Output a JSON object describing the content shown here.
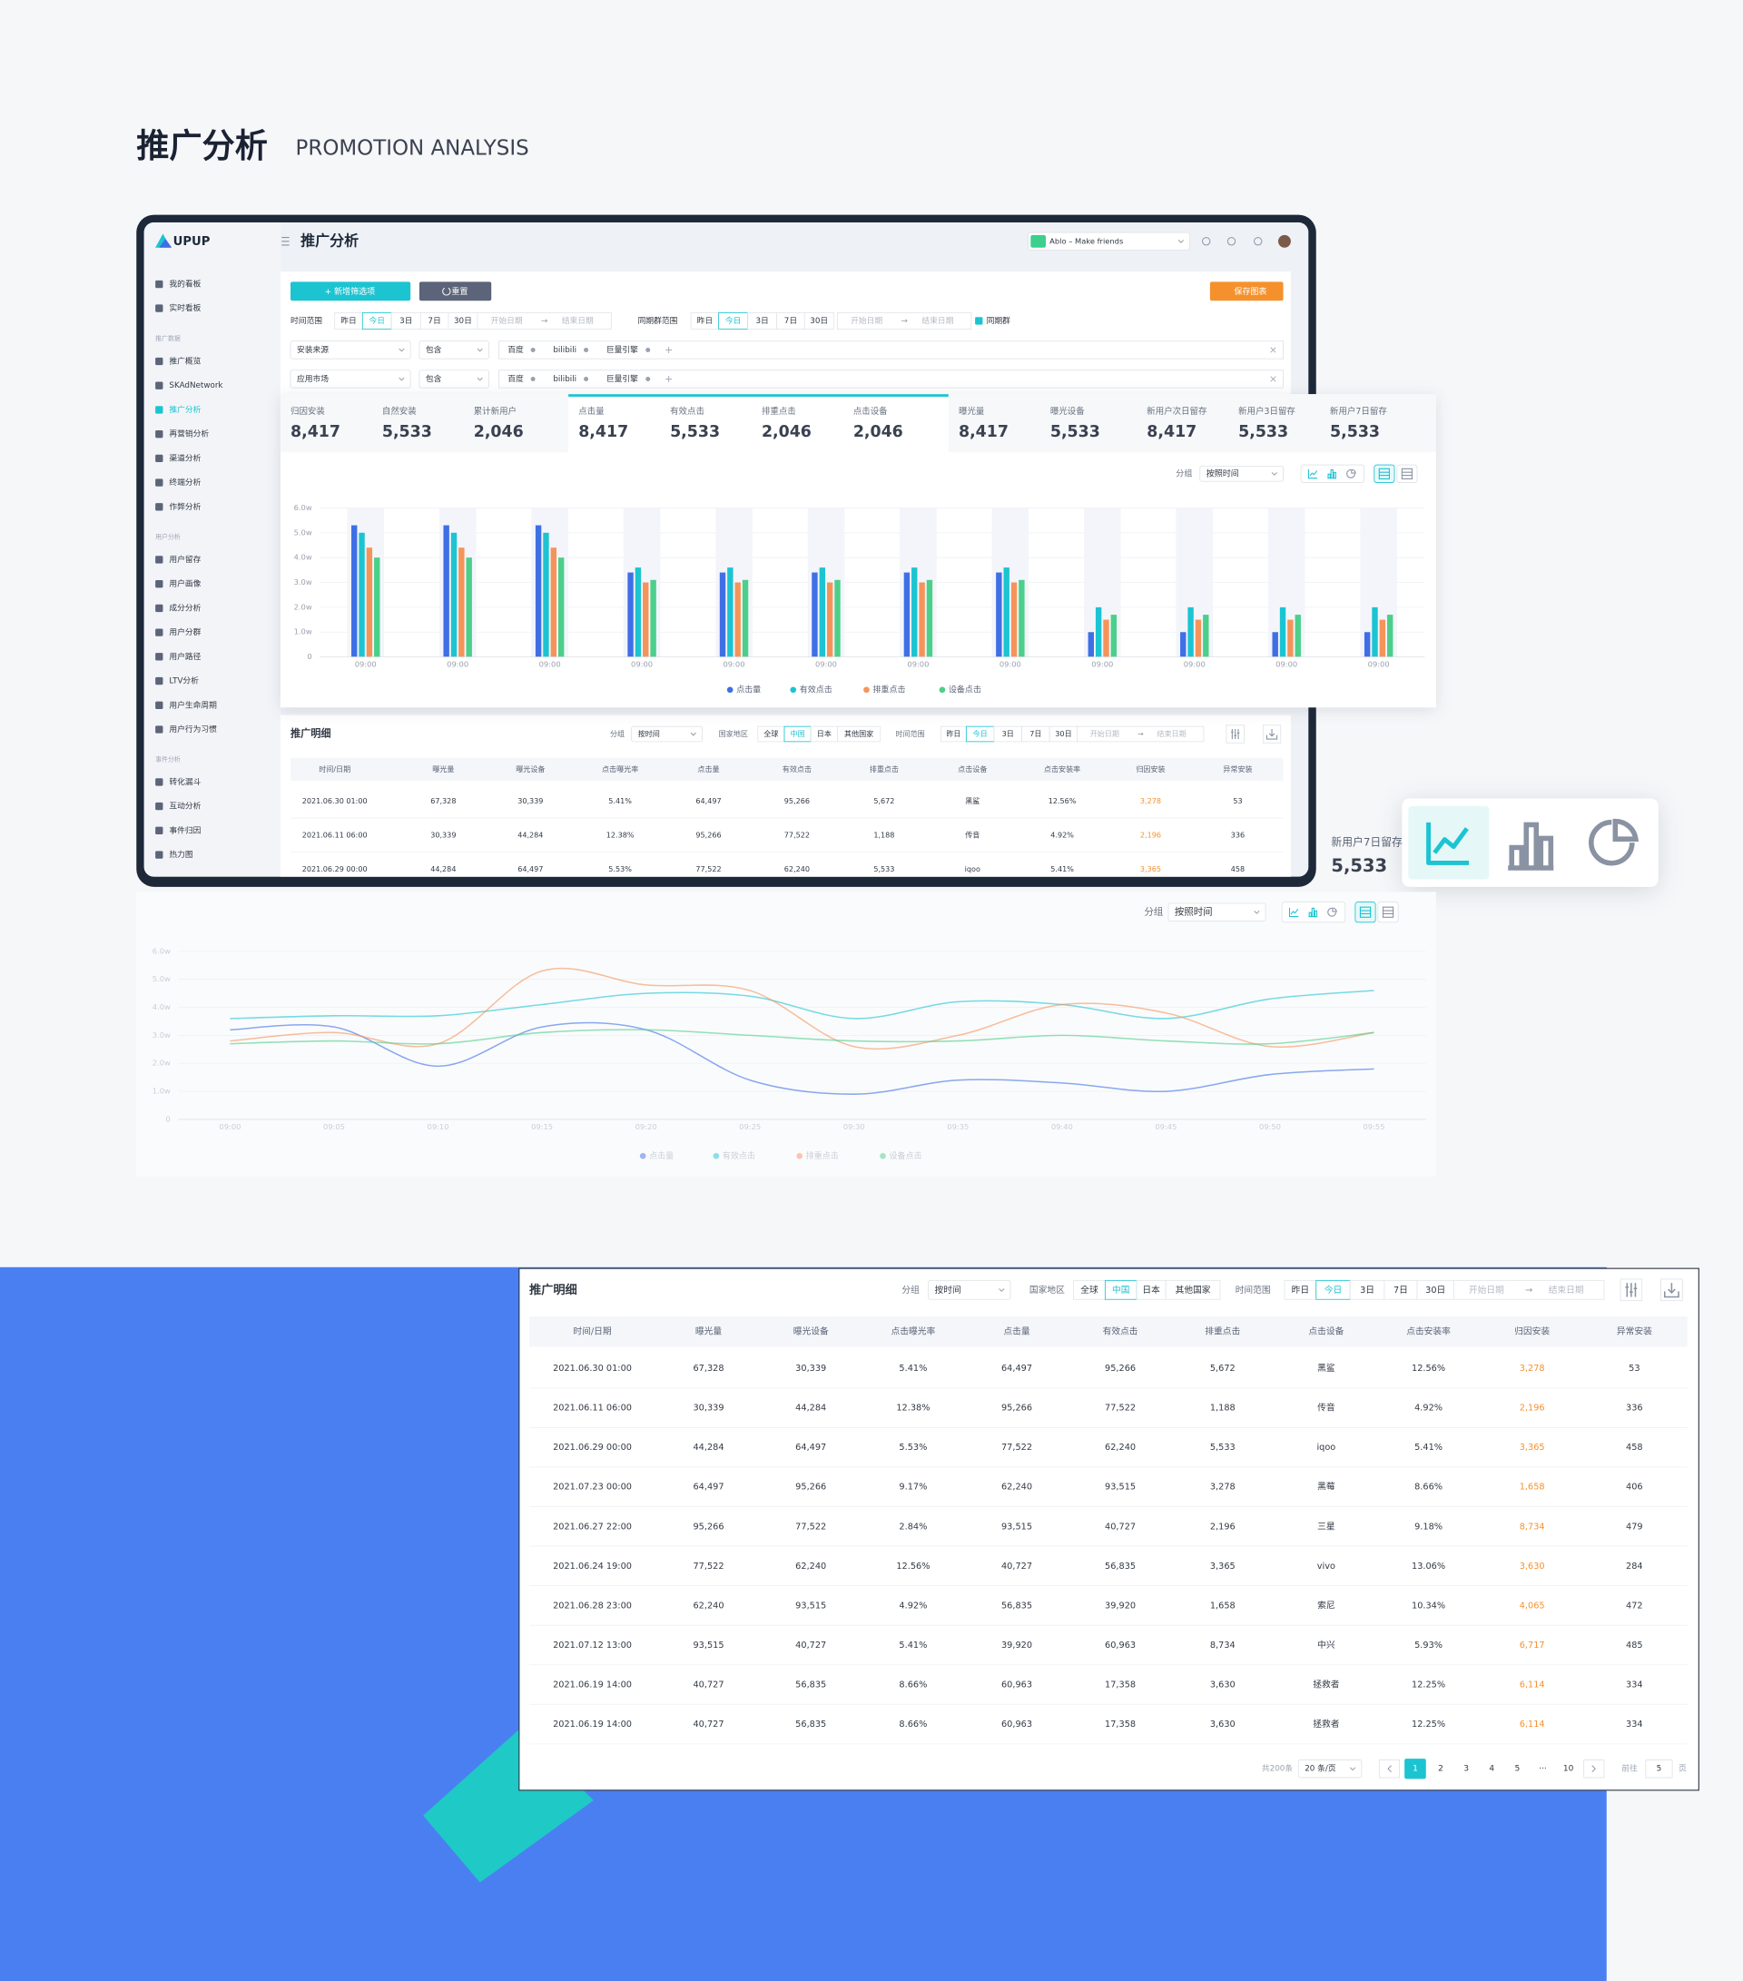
{
  "header": {
    "title": "推广分析",
    "subtitle": "PROMOTION ANALYSIS"
  },
  "app": {
    "logo": "UPUP",
    "page_title": "推广分析",
    "app_name": "Ablo – Make friends"
  },
  "sidebar": {
    "top": [
      "我的看板",
      "实时看板"
    ],
    "groups": [
      {
        "title": "推广数据",
        "items": [
          "推广概览",
          "SKAdNetwork",
          "推广分析",
          "再营销分析",
          "渠道分析",
          "终端分析",
          "作弊分析"
        ]
      },
      {
        "title": "用户分析",
        "items": [
          "用户留存",
          "用户画像",
          "成分分析",
          "用户分群",
          "用户路径",
          "LTV分析",
          "用户生命周期",
          "用户行为习惯"
        ]
      },
      {
        "title": "事件分析",
        "items": [
          "转化漏斗",
          "互动分析",
          "事件归因",
          "热力图"
        ]
      }
    ],
    "active_group": 0,
    "active_item": 2
  },
  "filters": {
    "add_button": "+ 新增筛选项",
    "reset_button": "重置",
    "save_button": "保存图表",
    "time_label": "时间范围",
    "time_options": [
      "昨日",
      "今日",
      "3日",
      "7日",
      "30日"
    ],
    "selected_option": 1,
    "start_date": "开始日期",
    "arrow": "→",
    "end_date": "结束日期",
    "cohort_label": "同期群范围",
    "cohort_checkbox": "同期群",
    "rows": [
      {
        "field": "安装来源",
        "operator": "包含",
        "tags": [
          "百度",
          "bilibili",
          "巨量引擎"
        ]
      },
      {
        "field": "应用市场",
        "operator": "包含",
        "tags": [
          "百度",
          "bilibili",
          "巨量引擎"
        ]
      }
    ]
  },
  "kpis": {
    "active_group": 1,
    "groups": [
      [
        {
          "label": "归因安装",
          "value": "8,417"
        },
        {
          "label": "自然安装",
          "value": "5,533"
        },
        {
          "label": "累计新用户",
          "value": "2,046"
        }
      ],
      [
        {
          "label": "点击量",
          "value": "8,417"
        },
        {
          "label": "有效点击",
          "value": "5,533"
        },
        {
          "label": "排重点击",
          "value": "2,046"
        },
        {
          "label": "点击设备",
          "value": "2,046"
        }
      ],
      [
        {
          "label": "曝光量",
          "value": "8,417"
        },
        {
          "label": "曝光设备",
          "value": "5,533"
        }
      ],
      [
        {
          "label": "新用户次日留存",
          "value": "8,417"
        },
        {
          "label": "新用户3日留存",
          "value": "5,533"
        },
        {
          "label": "新用户7日留存",
          "value": "5,533"
        }
      ]
    ]
  },
  "bar_chart": {
    "type": "bar",
    "group_label": "分组",
    "group_value": "按照时间",
    "categories": [
      "09:00",
      "09:00",
      "09:00",
      "09:00",
      "09:00",
      "09:00",
      "09:00",
      "09:00",
      "09:00",
      "09:00",
      "09:00",
      "09:00"
    ],
    "series": [
      {
        "name": "点击量",
        "color": "#3f6fe6",
        "values": [
          5.3,
          5.3,
          5.3,
          3.4,
          3.4,
          3.4,
          3.4,
          3.4,
          1.0,
          1.0,
          1.0,
          1.0
        ]
      },
      {
        "name": "有效点击",
        "color": "#1cc4d2",
        "values": [
          5.0,
          5.0,
          5.0,
          3.6,
          3.6,
          3.6,
          3.6,
          3.6,
          2.0,
          2.0,
          2.0,
          2.0
        ]
      },
      {
        "name": "排重点击",
        "color": "#f5945a",
        "values": [
          4.4,
          4.4,
          4.4,
          3.0,
          3.0,
          3.0,
          3.0,
          3.0,
          1.5,
          1.5,
          1.5,
          1.5
        ]
      },
      {
        "name": "设备点击",
        "color": "#4ccf8a",
        "values": [
          4.0,
          4.0,
          4.0,
          3.1,
          3.1,
          3.1,
          3.1,
          3.1,
          1.7,
          1.7,
          1.7,
          1.7
        ]
      }
    ],
    "ylim": [
      0,
      6
    ],
    "yticks": [
      0,
      {
        "value": 1,
        "label": "1.0w"
      },
      {
        "value": 2,
        "label": "2.0w"
      },
      {
        "value": 3,
        "label": "3.0w"
      },
      {
        "value": 4,
        "label": "4.0w"
      },
      {
        "value": 5,
        "label": "5.0w"
      },
      {
        "value": 6,
        "label": "6.0w"
      }
    ],
    "grid": true
  },
  "line_chart": {
    "type": "line",
    "group_label": "分组",
    "group_value": "按照时间",
    "categories": [
      "09:00",
      "09:05",
      "09:10",
      "09:15",
      "09:20",
      "09:25",
      "09:30",
      "09:35",
      "09:40",
      "09:45",
      "09:50",
      "09:55"
    ],
    "series": [
      {
        "name": "点击量",
        "color": "#3f6fe6",
        "values": [
          3.2,
          3.3,
          1.9,
          3.3,
          3.2,
          1.4,
          0.9,
          1.4,
          1.3,
          1.0,
          1.6,
          1.8
        ]
      },
      {
        "name": "有效点击",
        "color": "#1cc4d2",
        "values": [
          3.6,
          3.7,
          3.7,
          4.1,
          4.5,
          4.4,
          3.6,
          4.2,
          4.1,
          3.6,
          4.3,
          4.6
        ]
      },
      {
        "name": "排重点击",
        "color": "#f5945a",
        "values": [
          2.8,
          3.1,
          2.7,
          5.3,
          4.8,
          4.6,
          2.6,
          3.0,
          4.1,
          3.8,
          2.6,
          3.1
        ]
      },
      {
        "name": "设备点击",
        "color": "#4ccf8a",
        "values": [
          2.7,
          2.8,
          2.7,
          3.1,
          3.2,
          3.0,
          2.8,
          2.8,
          3.0,
          2.8,
          2.7,
          3.1
        ]
      }
    ],
    "ylim": [
      0,
      6
    ],
    "yticks": [
      0,
      {
        "value": 1,
        "label": "1.0w"
      },
      {
        "value": 2,
        "label": "2.0w"
      },
      {
        "value": 3,
        "label": "3.0w"
      },
      {
        "value": 4,
        "label": "4.0w"
      },
      {
        "value": 5,
        "label": "5.0w"
      },
      {
        "value": 6,
        "label": "6.0w"
      }
    ],
    "grid": true
  },
  "table": {
    "title": "推广明细",
    "group_label": "分组",
    "group_value": "按时间",
    "region_label": "国家地区",
    "regions": [
      "全球",
      "中国",
      "日本",
      "其他国家"
    ],
    "selected_region": 1,
    "time_label": "时间范围",
    "time_options": [
      "昨日",
      "今日",
      "3日",
      "7日",
      "30日"
    ],
    "selected_time": 1,
    "start_date": "开始日期",
    "arrow": "→",
    "end_date": "结束日期",
    "columns": [
      "时间/日期",
      "曝光量",
      "曝光设备",
      "点击曝光率",
      "点击量",
      "有效点击",
      "排重点击",
      "点击设备",
      "点击安装率",
      "归因安装",
      "异常安装"
    ],
    "highlight_column": 9,
    "highlight_color": "#f5912d",
    "rows": [
      [
        "2021.06.30  01:00",
        "67,328",
        "30,339",
        "5.41%",
        "64,497",
        "95,266",
        "5,672",
        "黑鲨",
        "12.56%",
        "3,278",
        "53"
      ],
      [
        "2021.06.11  06:00",
        "30,339",
        "44,284",
        "12.38%",
        "95,266",
        "77,522",
        "1,188",
        "传音",
        "4.92%",
        "2,196",
        "336"
      ],
      [
        "2021.06.29  00:00",
        "44,284",
        "64,497",
        "5.53%",
        "77,522",
        "62,240",
        "5,533",
        "iqoo",
        "5.41%",
        "3,365",
        "458"
      ],
      [
        "2021.07.23  00:00",
        "64,497",
        "95,266",
        "9.17%",
        "62,240",
        "93,515",
        "3,278",
        "黑莓",
        "8.66%",
        "1,658",
        "406"
      ],
      [
        "2021.06.27  22:00",
        "95,266",
        "77,522",
        "2.84%",
        "93,515",
        "40,727",
        "2,196",
        "三星",
        "9.18%",
        "8,734",
        "479"
      ],
      [
        "2021.06.24  19:00",
        "77,522",
        "62,240",
        "12.56%",
        "40,727",
        "56,835",
        "3,365",
        "vivo",
        "13.06%",
        "3,630",
        "284"
      ],
      [
        "2021.06.28  23:00",
        "62,240",
        "93,515",
        "4.92%",
        "56,835",
        "39,920",
        "1,658",
        "索尼",
        "10.34%",
        "4,065",
        "472"
      ],
      [
        "2021.07.12  13:00",
        "93,515",
        "40,727",
        "5.41%",
        "39,920",
        "60,963",
        "8,734",
        "中兴",
        "5.93%",
        "6,717",
        "485"
      ],
      [
        "2021.06.19  14:00",
        "40,727",
        "56,835",
        "8.66%",
        "60,963",
        "17,358",
        "3,630",
        "拯救者",
        "12.25%",
        "6,114",
        "334"
      ],
      [
        "2021.06.19  14:00",
        "40,727",
        "56,835",
        "8.66%",
        "60,963",
        "17,358",
        "3,630",
        "拯救者",
        "12.25%",
        "6,114",
        "334"
      ]
    ],
    "pagination": {
      "total": "共200条",
      "page_size": "20 条/页",
      "pages": [
        "1",
        "2",
        "3",
        "4",
        "5",
        "···",
        "10"
      ],
      "current": 0,
      "goto": "前往",
      "goto_page": "5",
      "page_unit": "页"
    }
  }
}
